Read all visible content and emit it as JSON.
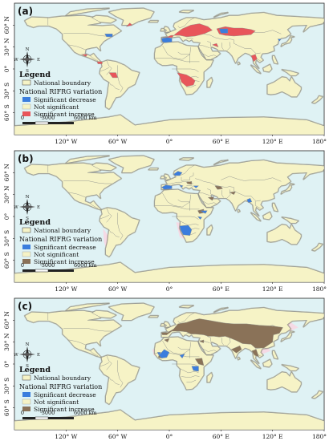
{
  "panels": [
    {
      "id": "a",
      "label": "(a)",
      "increase_color": "#e8555a"
    },
    {
      "id": "b",
      "label": "(b)",
      "increase_color": "#8a7258"
    },
    {
      "id": "c",
      "label": "(c)",
      "increase_color": "#8a7258"
    }
  ],
  "legend": {
    "title": "Legend",
    "national_boundary": "National boundary",
    "variation_title": "National RIFRG variation",
    "sig_decrease": "Significant decrease",
    "not_significant": "Not significant",
    "sig_increase": "Significant increase"
  },
  "scalebar": {
    "zero": "0",
    "mid": "3000",
    "end": "6000 km"
  },
  "compass": {
    "n": "N",
    "s": "S",
    "e": "E",
    "w": "W"
  },
  "lat_labels": [
    "60° N",
    "30° N",
    "0°",
    "30° S",
    "60° S"
  ],
  "lon_labels": [
    "120° W",
    "60° W",
    "0°",
    "60° E",
    "120° E",
    "180°"
  ],
  "colors": {
    "ocean": "#dff2f4",
    "land": "#f6f3c6",
    "boundary": "#8b8f8b",
    "coast_shade": "#8a7f6a",
    "decrease": "#3b7ddd",
    "increase_a": "#e8555a",
    "increase_bc": "#8a7258",
    "buffer": "#f7d7e3"
  }
}
